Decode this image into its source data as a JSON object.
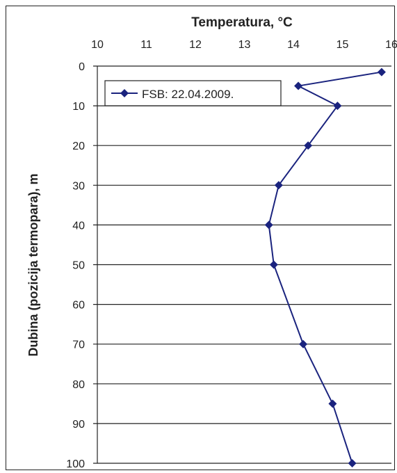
{
  "chart_data": {
    "type": "line",
    "title": "Temperatura, °C",
    "xlabel": "Temperatura, °C",
    "ylabel": "Dubina (pozicija termopara), m",
    "x_axis_position": "top",
    "y_axis_inverted": true,
    "xlim": [
      10,
      16
    ],
    "ylim": [
      0,
      100
    ],
    "x_ticks": [
      "10",
      "11",
      "12",
      "13",
      "14",
      "15",
      "16"
    ],
    "y_ticks": [
      "0",
      "10",
      "20",
      "30",
      "40",
      "50",
      "60",
      "70",
      "80",
      "90",
      "100"
    ],
    "grid": "horizontal",
    "legend_position": "top-left",
    "series": [
      {
        "name": "FSB: 22.04.2009.",
        "color": "#1a237e",
        "marker": "diamond",
        "points": [
          {
            "temperature": 15.8,
            "depth": 1.5
          },
          {
            "temperature": 14.1,
            "depth": 5
          },
          {
            "temperature": 14.9,
            "depth": 10
          },
          {
            "temperature": 14.3,
            "depth": 20
          },
          {
            "temperature": 13.7,
            "depth": 30
          },
          {
            "temperature": 13.5,
            "depth": 40
          },
          {
            "temperature": 13.6,
            "depth": 50
          },
          {
            "temperature": 14.2,
            "depth": 70
          },
          {
            "temperature": 14.8,
            "depth": 85
          },
          {
            "temperature": 15.2,
            "depth": 100
          }
        ]
      }
    ]
  }
}
